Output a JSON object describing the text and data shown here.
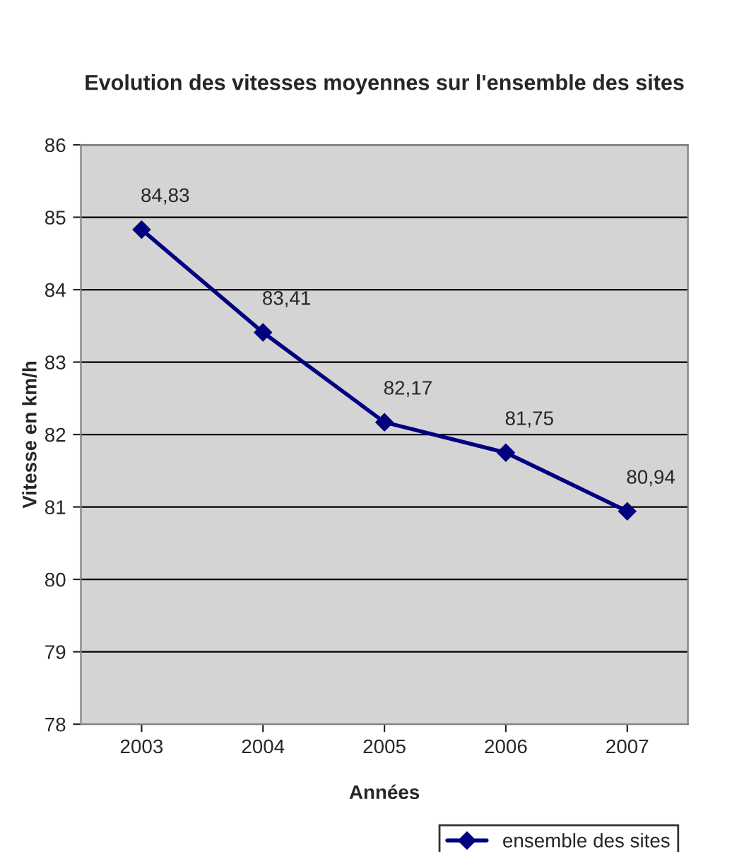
{
  "chart_data": {
    "type": "line",
    "title": "Evolution des vitesses moyennes sur l'ensemble des sites",
    "xlabel": "Années",
    "ylabel": "Vitesse en km/h",
    "categories": [
      "2003",
      "2004",
      "2005",
      "2006",
      "2007"
    ],
    "series": [
      {
        "name": "ensemble des sites",
        "color": "#000080",
        "values": [
          84.83,
          83.41,
          82.17,
          81.75,
          80.94
        ],
        "value_labels": [
          "84,83",
          "83,41",
          "82,17",
          "81,75",
          "80,94"
        ]
      }
    ],
    "ylim": [
      78,
      86
    ],
    "yticks": [
      78,
      79,
      80,
      81,
      82,
      83,
      84,
      85,
      86
    ],
    "grid": "y",
    "legend": "bottom right",
    "marker": "diamond",
    "line_style": "solid"
  }
}
